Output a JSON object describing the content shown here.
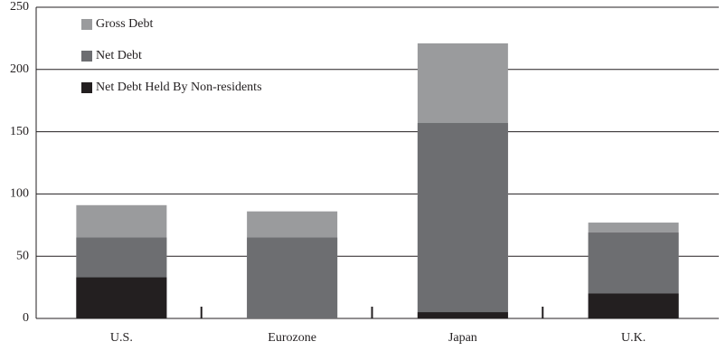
{
  "chart_data": {
    "type": "bar",
    "overlay": true,
    "categories": [
      "U.S.",
      "Eurozone",
      "Japan",
      "U.K."
    ],
    "series": [
      {
        "name": "Gross Debt",
        "color": "#9a9b9d",
        "values": [
          91,
          86,
          221,
          77
        ]
      },
      {
        "name": "Net Debt",
        "color": "#6d6e71",
        "values": [
          65,
          65,
          157,
          69
        ]
      },
      {
        "name": "Net Debt Held By Non-residents",
        "color": "#231f20",
        "values": [
          33,
          0,
          5,
          20
        ]
      }
    ],
    "ylim": [
      0,
      250
    ],
    "yticks": [
      0,
      50,
      100,
      150,
      200,
      250
    ],
    "grid": true,
    "legend": "top-left"
  }
}
